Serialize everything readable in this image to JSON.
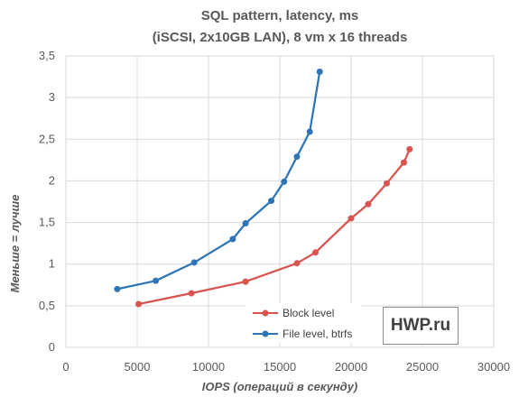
{
  "watermark": "HWP.ru",
  "chart_data": {
    "type": "line",
    "title": [
      "SQL pattern, latency, ms",
      "(iSCSI, 2x10GB LAN), 8 vm x 16 threads"
    ],
    "xlabel": "IOPS (операций в секунду)",
    "ylabel": "Меньше = лучше",
    "xlim": [
      0,
      30000
    ],
    "ylim": [
      0,
      3.5
    ],
    "xticks": [
      "0",
      "5000",
      "10000",
      "15000",
      "20000",
      "25000",
      "30000"
    ],
    "yticks": [
      "0",
      "0,5",
      "1",
      "1,5",
      "2",
      "2,5",
      "3",
      "3,5"
    ],
    "grid": true,
    "legend_position": "bottom-right",
    "series": [
      {
        "name": "Block level",
        "color": "#d9534f",
        "x": [
          5100,
          8800,
          12600,
          16200,
          17500,
          20000,
          21200,
          22500,
          23700,
          24100
        ],
        "y": [
          0.52,
          0.65,
          0.79,
          1.01,
          1.14,
          1.55,
          1.72,
          1.97,
          2.22,
          2.38
        ]
      },
      {
        "name": "File level, btrfs",
        "color": "#2e75b6",
        "x": [
          3600,
          6300,
          9000,
          11700,
          12600,
          14400,
          15300,
          16200,
          17100,
          17800
        ],
        "y": [
          0.7,
          0.8,
          1.02,
          1.3,
          1.49,
          1.76,
          1.99,
          2.29,
          2.59,
          3.31
        ]
      }
    ]
  }
}
